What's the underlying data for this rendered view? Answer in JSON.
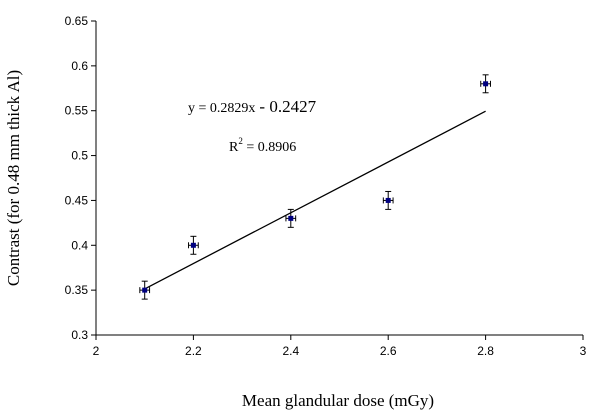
{
  "chart_data": {
    "type": "scatter",
    "title": "",
    "xlabel": "Mean glandular dose (mGy)",
    "ylabel": "Contrast (for 0.48 mm thick Al)",
    "xlim": [
      2,
      3
    ],
    "ylim": [
      0.3,
      0.65
    ],
    "xticks": [
      "2",
      "2.2",
      "2.4",
      "2.6",
      "2.8",
      "3"
    ],
    "yticks": [
      "0.3",
      "0.35",
      "0.4",
      "0.45",
      "0.5",
      "0.55",
      "0.6",
      "0.65"
    ],
    "grid": false,
    "series": [
      {
        "x": [
          2.1,
          2.2,
          2.4,
          2.6,
          2.8
        ],
        "y": [
          0.35,
          0.4,
          0.43,
          0.45,
          0.58
        ],
        "y_error": [
          0.01,
          0.01,
          0.01,
          0.01,
          0.01
        ],
        "x_error": [
          0.01,
          0.01,
          0.01,
          0.01,
          0.01
        ]
      }
    ],
    "trendline": {
      "slope": 0.2829,
      "intercept": -0.2427,
      "x_range": [
        2.1,
        2.8
      ]
    },
    "annotations": {
      "equation_prefix": "y = 0.2829x",
      "equation_suffix": "- 0.2427",
      "r2_prefix": "R",
      "r2_sup": "2",
      "r2_suffix": " = 0.8906"
    },
    "colors": {
      "marker": "#000080",
      "line": "#000000",
      "axis": "#000000"
    }
  }
}
